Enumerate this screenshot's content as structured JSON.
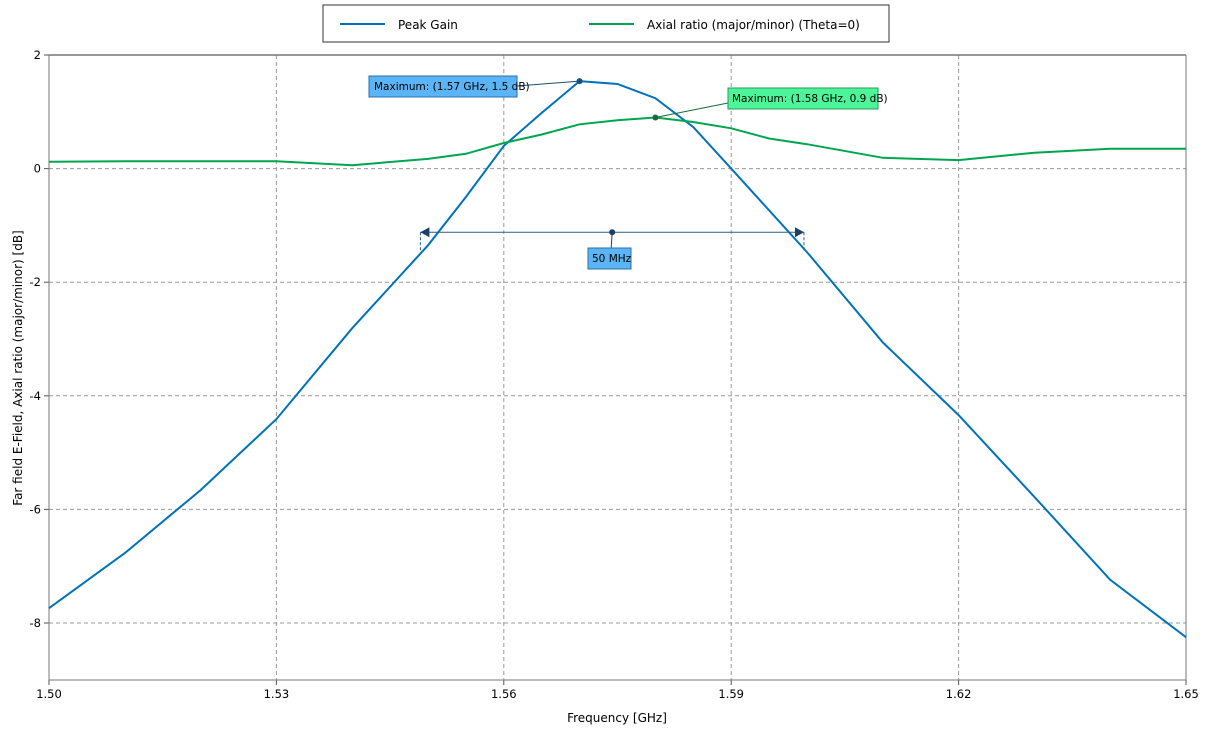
{
  "chart_data": {
    "type": "line",
    "title": "",
    "xlabel": "Frequency [GHz]",
    "ylabel": "Far field E-Field,  Axial ratio (major/minor) [dB]",
    "xlim": [
      1.5,
      1.65
    ],
    "ylim": [
      -9,
      2
    ],
    "xticks": [
      "1.50",
      "1.53",
      "1.56",
      "1.59",
      "1.62",
      "1.65"
    ],
    "yticks": [
      "2",
      "0",
      "-2",
      "-4",
      "-6",
      "-8"
    ],
    "grid": true,
    "legend_placement": "top",
    "series": [
      {
        "name": "Peak Gain",
        "color": "#0072bd",
        "x": [
          1.5,
          1.51,
          1.52,
          1.53,
          1.54,
          1.55,
          1.555,
          1.56,
          1.565,
          1.57,
          1.575,
          1.58,
          1.585,
          1.59,
          1.6,
          1.61,
          1.62,
          1.63,
          1.64,
          1.65
        ],
        "y": [
          -7.74,
          -6.77,
          -5.66,
          -4.41,
          -2.81,
          -1.35,
          -0.5,
          0.4,
          0.98,
          1.54,
          1.49,
          1.24,
          0.73,
          0.0,
          -1.47,
          -3.06,
          -4.34,
          -5.78,
          -7.24,
          -8.25
        ]
      },
      {
        "name": "Axial ratio (major/minor) (Theta=0)",
        "color": "#00a64f",
        "x": [
          1.5,
          1.51,
          1.52,
          1.53,
          1.54,
          1.55,
          1.555,
          1.56,
          1.565,
          1.57,
          1.575,
          1.58,
          1.585,
          1.59,
          1.595,
          1.6,
          1.61,
          1.62,
          1.63,
          1.64,
          1.65
        ],
        "y": [
          0.12,
          0.13,
          0.13,
          0.13,
          0.06,
          0.17,
          0.26,
          0.45,
          0.6,
          0.78,
          0.85,
          0.9,
          0.82,
          0.71,
          0.53,
          0.43,
          0.19,
          0.15,
          0.28,
          0.35,
          0.35
        ]
      }
    ],
    "annotations": [
      {
        "text": "Maximum: (1.57 GHz, 1.5 dB)",
        "x": 1.57,
        "y": 1.54,
        "color": "#5ab4f5"
      },
      {
        "text": "Maximum: (1.58 GHz, 0.9 dB)",
        "x": 1.58,
        "y": 0.9,
        "color": "#4cf59a"
      },
      {
        "text": "50 MHz",
        "x_start": 1.549,
        "x_end": 1.5996,
        "y": -1.12,
        "color": "#5ab4f5"
      }
    ]
  }
}
